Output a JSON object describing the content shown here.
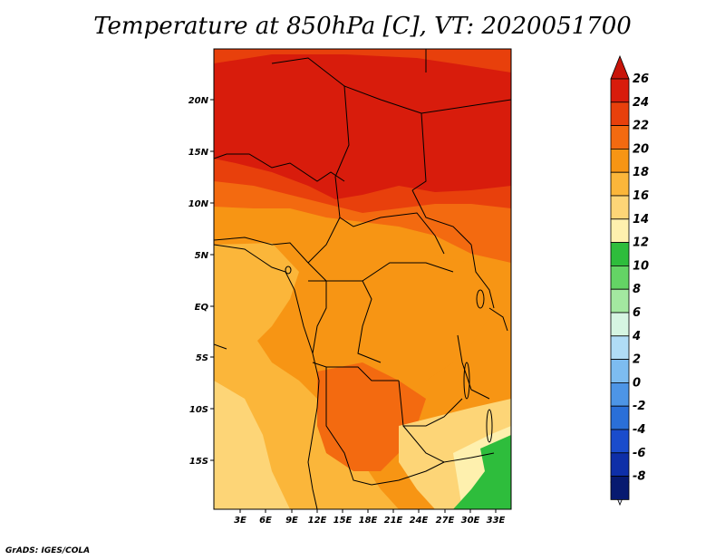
{
  "title": "Temperature at 850hPa [C], VT: 2020051700",
  "credit": "GrADS: IGES/COLA",
  "map": {
    "lon_ticks": [
      "3E",
      "6E",
      "9E",
      "12E",
      "15E",
      "18E",
      "21E",
      "24E",
      "27E",
      "30E",
      "33E"
    ],
    "lat_ticks": [
      "20N",
      "15N",
      "10N",
      "5N",
      "EQ",
      "5S",
      "10S",
      "15S"
    ]
  },
  "colorbar": {
    "labels": [
      "26",
      "24",
      "22",
      "20",
      "18",
      "16",
      "14",
      "12",
      "10",
      "8",
      "6",
      "4",
      "2",
      "0",
      "-2",
      "-4",
      "-6",
      "-8"
    ],
    "colors": [
      "#d81c0c",
      "#e8400c",
      "#f36a10",
      "#f79514",
      "#fbb63a",
      "#fdd577",
      "#fef0ae",
      "#2ebd3c",
      "#64d465",
      "#a3e8a0",
      "#d6f5e2",
      "#b0dcf6",
      "#7dbcf0",
      "#4d95e6",
      "#2a6fd8",
      "#1a4ccc",
      "#0e2fa8",
      "#071a70"
    ],
    "top_arrow_color": "#c8140a",
    "bottom_arrow_color": "#e0e4f6"
  },
  "legend_colors": {
    "t25": "#d81c0c",
    "t23": "#e8400c",
    "t21": "#f36a10",
    "t19": "#f79514",
    "t17": "#fbb63a",
    "t15": "#fdd577",
    "t13": "#2ebd3c"
  }
}
